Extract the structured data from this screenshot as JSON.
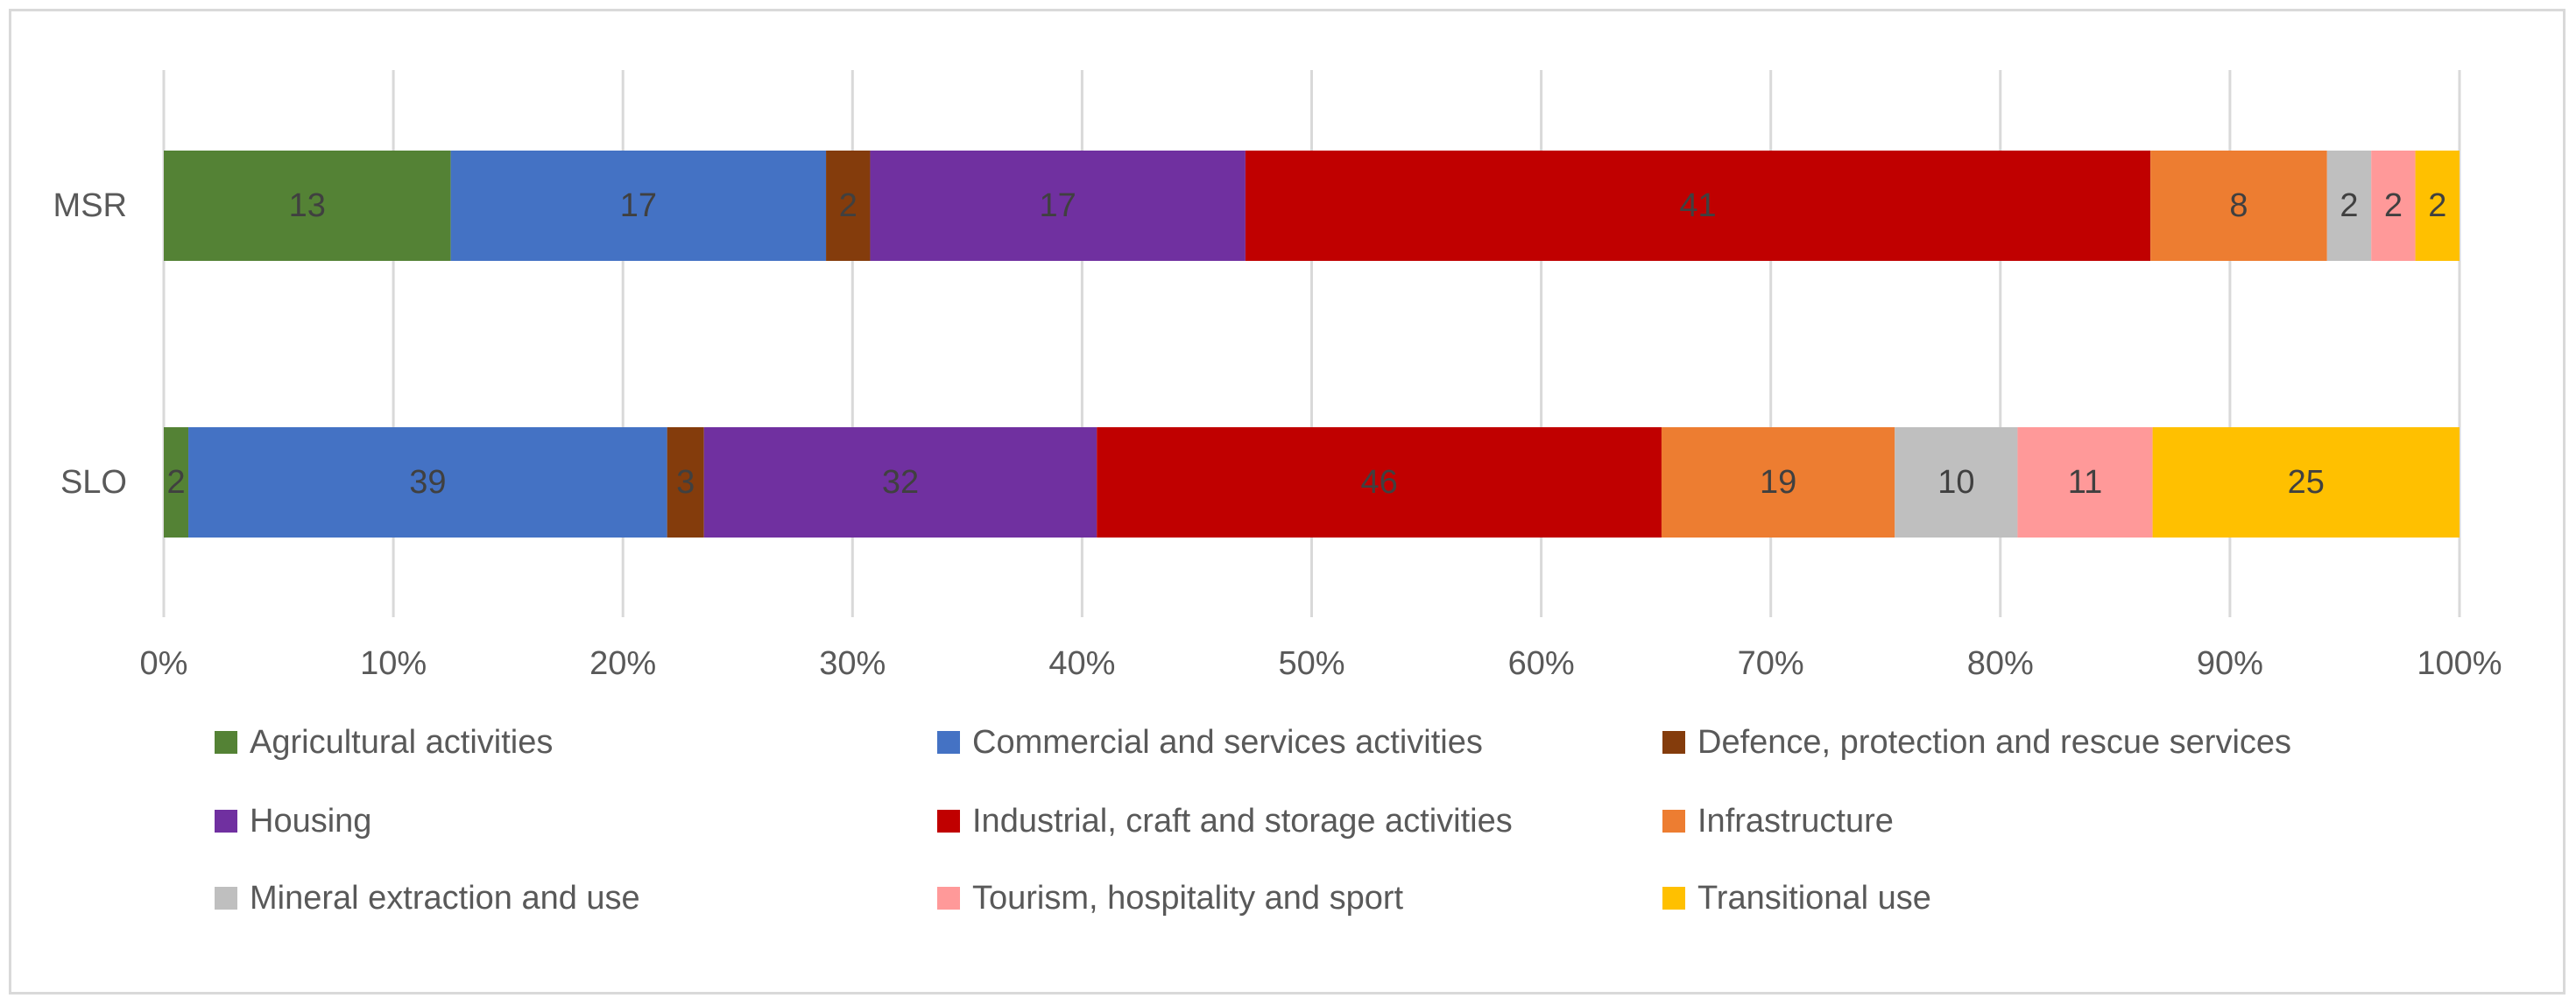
{
  "chart_data": {
    "type": "bar",
    "orientation": "horizontal",
    "stacked": "percent",
    "title": "",
    "xlabel": "",
    "ylabel": "",
    "xlim": [
      0,
      100
    ],
    "x_ticks": [
      "0%",
      "10%",
      "20%",
      "30%",
      "40%",
      "50%",
      "60%",
      "70%",
      "80%",
      "90%",
      "100%"
    ],
    "categories": [
      "MSR",
      "SLO"
    ],
    "grid": true,
    "legend_position": "bottom",
    "series": [
      {
        "name": "Agricultural activities",
        "color": "#548235",
        "values": [
          13,
          2
        ]
      },
      {
        "name": "Commercial and services activities",
        "color": "#4472c4",
        "values": [
          17,
          39
        ]
      },
      {
        "name": "Defence, protection and rescue services",
        "color": "#843c0c",
        "values": [
          2,
          3
        ]
      },
      {
        "name": "Housing",
        "color": "#7030a0",
        "values": [
          17,
          32
        ]
      },
      {
        "name": "Industrial, craft and storage activities",
        "color": "#c00000",
        "values": [
          41,
          46
        ]
      },
      {
        "name": "Infrastructure",
        "color": "#ed7d31",
        "values": [
          8,
          19
        ]
      },
      {
        "name": "Mineral extraction and use",
        "color": "#bfbfbf",
        "values": [
          2,
          10
        ]
      },
      {
        "name": "Tourism, hospitality and sport",
        "color": "#ff9999",
        "values": [
          2,
          11
        ]
      },
      {
        "name": "Transitional use",
        "color": "#ffc000",
        "values": [
          2,
          25
        ]
      }
    ]
  }
}
